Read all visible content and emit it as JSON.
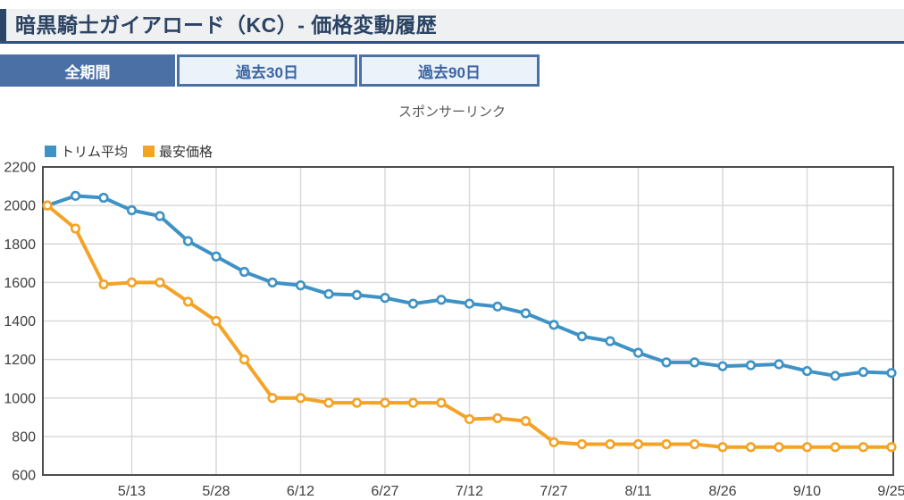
{
  "header": {
    "title": "暗黒騎士ガイアロード（KC）- 価格変動履歴"
  },
  "tabs": {
    "items": [
      {
        "label": "全期間",
        "active": true
      },
      {
        "label": "過去30日",
        "active": false
      },
      {
        "label": "過去90日",
        "active": false
      }
    ]
  },
  "sponsor": {
    "label": "スポンサーリンク"
  },
  "colors": {
    "accent_navy": "#2c4668",
    "title_text": "#2b4363",
    "title_bar_bg": "#eef0f2",
    "tab_blue": "#4b70a6",
    "tab_light_bg": "#ecf2fa",
    "tab_text": "#3a64a3",
    "series_blue": "#3e92c5",
    "series_orange": "#f4a327",
    "grid": "#d9d9d9",
    "chart_border": "#4d4d4d",
    "axis_text": "#3d3d3d"
  },
  "chart_data": {
    "type": "line",
    "title": "",
    "xlabel": "",
    "ylabel": "",
    "ylim": [
      600,
      2200
    ],
    "y_ticks": [
      600,
      800,
      1000,
      1200,
      1400,
      1600,
      1800,
      2000,
      2200
    ],
    "x_tick_labels": [
      "5/13",
      "5/28",
      "6/12",
      "6/27",
      "7/12",
      "7/27",
      "8/11",
      "8/26",
      "9/10",
      "9/25"
    ],
    "x_tick_indices": [
      3,
      6,
      9,
      12,
      15,
      18,
      21,
      24,
      27,
      30
    ],
    "n_points": 31,
    "grid": "both",
    "legend_position": "top-left",
    "marker": "open-circle",
    "series": [
      {
        "name": "トリム平均",
        "color": "#3e92c5",
        "values": [
          2000,
          2050,
          2040,
          1975,
          1945,
          1815,
          1735,
          1655,
          1600,
          1585,
          1540,
          1535,
          1520,
          1490,
          1510,
          1490,
          1475,
          1440,
          1380,
          1320,
          1295,
          1235,
          1185,
          1185,
          1165,
          1170,
          1175,
          1140,
          1115,
          1135,
          1130
        ]
      },
      {
        "name": "最安価格",
        "color": "#f4a327",
        "values": [
          2000,
          1880,
          1590,
          1600,
          1600,
          1500,
          1400,
          1200,
          1000,
          1000,
          975,
          975,
          975,
          975,
          975,
          890,
          895,
          880,
          770,
          760,
          760,
          760,
          760,
          760,
          745,
          745,
          745,
          745,
          745,
          745,
          745
        ]
      }
    ]
  }
}
